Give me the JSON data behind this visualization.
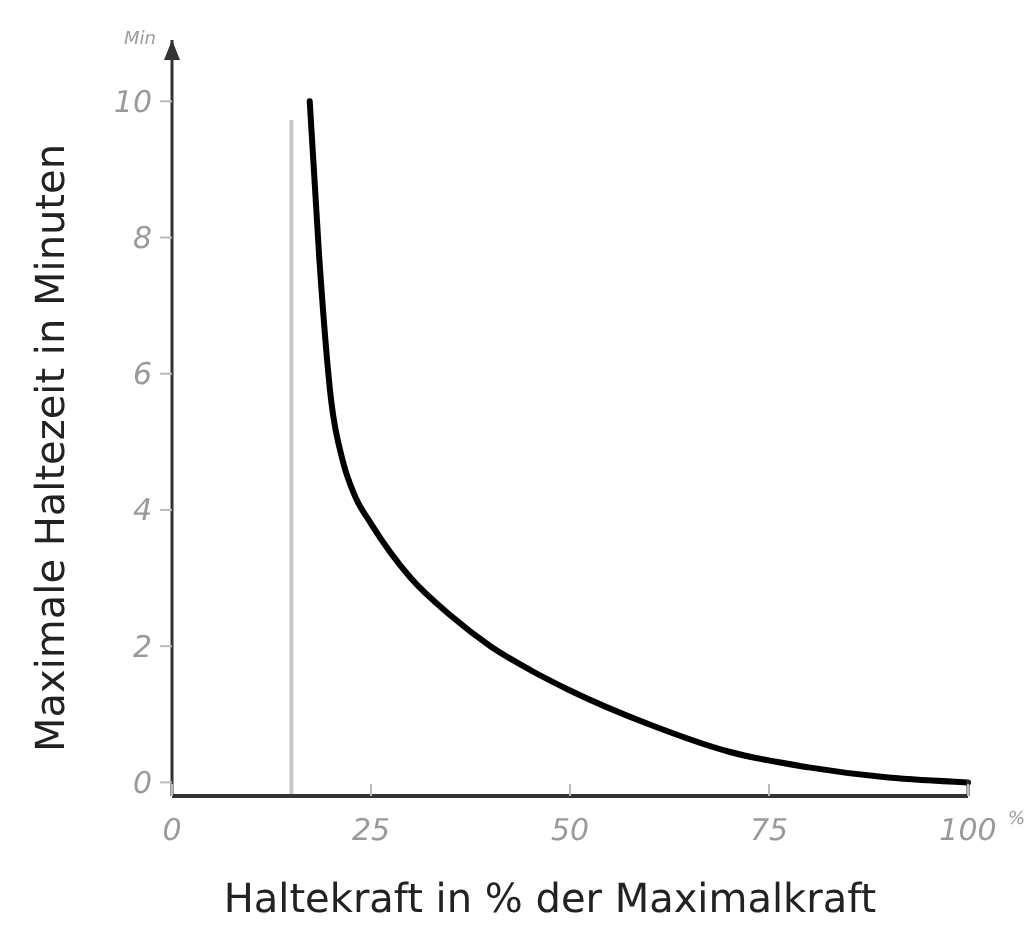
{
  "chart_data": {
    "type": "line",
    "xlabel": "Haltekraft in % der Maximalkraft",
    "ylabel": "Maximale Haltezeit in Minuten",
    "annotations": [
      "Min",
      "%"
    ],
    "series": [
      {
        "color": "#000000",
        "x": [
          17.3,
          18.5,
          20,
          21.5,
          23,
          25,
          30,
          35,
          40,
          45,
          50,
          60,
          70,
          80,
          90,
          100
        ],
        "values": [
          10,
          7.7,
          5.6,
          4.7,
          4.2,
          3.8,
          3.0,
          2.45,
          2.0,
          1.65,
          1.35,
          0.85,
          0.45,
          0.22,
          0.07,
          0
        ]
      }
    ],
    "xlim": [
      0,
      100
    ],
    "ylim": [
      -0.2,
      10.9
    ],
    "xticks": [
      0,
      25,
      50,
      75,
      100
    ],
    "yticks": [
      0,
      2,
      4,
      6,
      8,
      10
    ],
    "ref_lines": [
      {
        "axis": "x",
        "value": 15,
        "color": "#c8c8c8"
      }
    ],
    "grid": false,
    "marker": "none",
    "line_style": "solid"
  }
}
